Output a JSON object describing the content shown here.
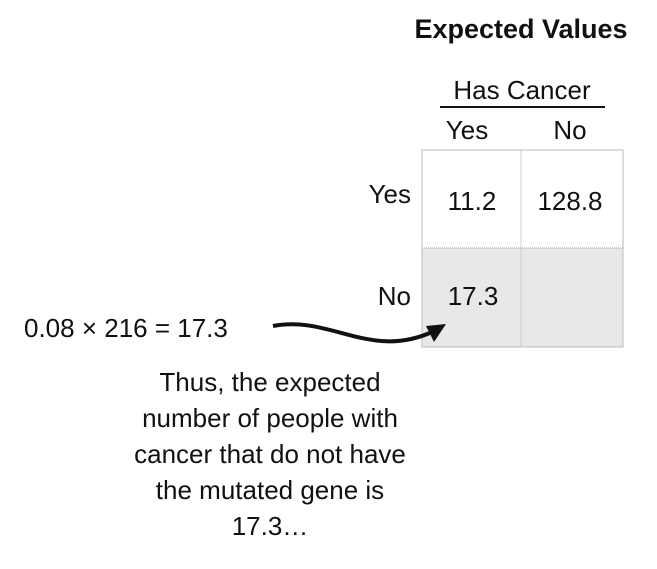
{
  "title": "Expected Values",
  "table": {
    "column_header": "Has Cancer",
    "columns": [
      "Yes",
      "No"
    ],
    "rows": [
      {
        "label": "Yes",
        "cells": [
          "11.2",
          "128.8"
        ]
      },
      {
        "label": "No",
        "cells": [
          "17.3",
          ""
        ]
      }
    ]
  },
  "formula": "0.08 × 216 = 17.3",
  "explanation": [
    "Thus, the expected",
    "number of people with",
    "cancer that do not have",
    "the mutated gene is",
    "17.3…"
  ]
}
